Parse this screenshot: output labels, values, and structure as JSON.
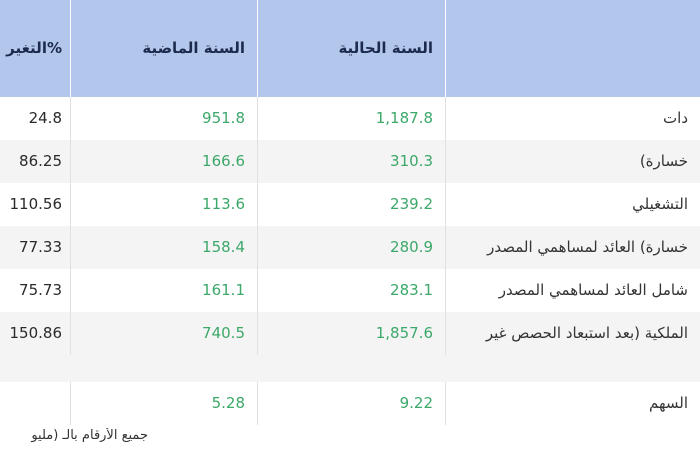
{
  "header": {
    "change": "التغير%",
    "last_year": "السنة الماضية",
    "current_year": "السنة الحالية",
    "label": ""
  },
  "rows": [
    {
      "label": "دات",
      "current": "1,187.8",
      "last": "951.8",
      "change": "24.8"
    },
    {
      "label": "خسارة)",
      "current": "310.3",
      "last": "166.6",
      "change": "86.25"
    },
    {
      "label": "التشغيلي",
      "current": "239.2",
      "last": "113.6",
      "change": "110.56"
    },
    {
      "label": "خسارة) العائد لمساهمي المصدر",
      "current": "280.9",
      "last": "158.4",
      "change": "77.33"
    },
    {
      "label": "شامل العائد لمساهمي المصدر",
      "current": "283.1",
      "last": "161.1",
      "change": "75.73"
    },
    {
      "label": "الملكية (بعد استبعاد الحصص غير",
      "current": "1,857.6",
      "last": "740.5",
      "change": "150.86"
    },
    {
      "label": "السهم",
      "current": "9.22",
      "last": "5.28",
      "change": ""
    }
  ],
  "footer": "جميع الأرقام بالـ (مليو",
  "colors": {
    "header_bg": "#b3c6eb",
    "positive": "#3ca86a",
    "stripe": "#f4f4f4"
  }
}
